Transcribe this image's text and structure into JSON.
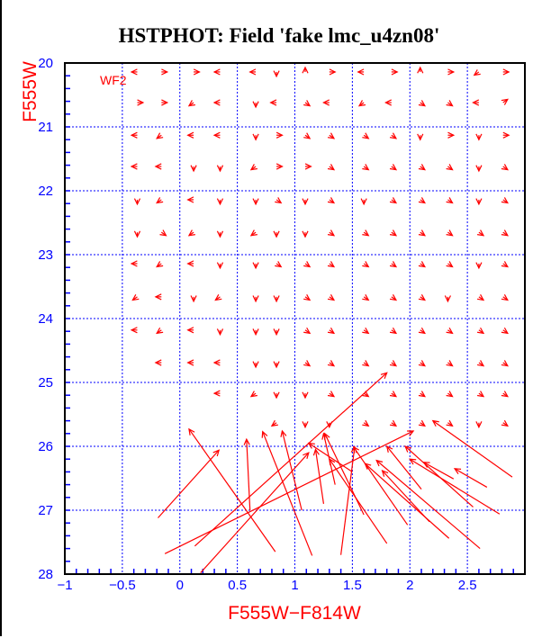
{
  "chart_data": {
    "type": "vector",
    "title": "HSTPHOT: Field 'fake lmc_u4zn08'",
    "xlabel": "F555W−F814W",
    "ylabel": "F555W",
    "panel_label": "WF2",
    "xlim": [
      -1,
      3
    ],
    "ylim": [
      28,
      20
    ],
    "y_inverted": true,
    "grid": true,
    "xticks": [
      -1,
      -0.5,
      0,
      0.5,
      1,
      1.5,
      2,
      2.5
    ],
    "xtick_labels": [
      "−1",
      "−0.5",
      "0",
      "0.5",
      "1",
      "1.5",
      "2",
      "2.5"
    ],
    "yticks": [
      20,
      21,
      22,
      23,
      24,
      25,
      26,
      27,
      28
    ],
    "ytick_labels": [
      "20",
      "21",
      "22",
      "23",
      "24",
      "25",
      "26",
      "27",
      "28"
    ],
    "colors": {
      "vectors": "#ff0000",
      "grid": "#0000ff",
      "ticks": "#0000ff",
      "axis_label": "#ff0000",
      "title": "#000000"
    },
    "small_vector_rows": [
      {
        "y": 20.14,
        "x": [
          -0.37,
          -0.16,
          0.12,
          0.35,
          0.66,
          0.84,
          1.09,
          1.3,
          1.6,
          1.84,
          2.09,
          2.33,
          2.6,
          2.81
        ],
        "dx": [
          -0.05,
          0.05,
          0.05,
          -0.05,
          -0.05,
          0,
          0,
          0.05,
          -0.05,
          0.05,
          0,
          0.05,
          -0.04,
          0.05
        ],
        "dy": [
          0,
          0,
          0,
          0,
          0,
          0.07,
          -0.07,
          0,
          0,
          0,
          -0.07,
          0,
          0.05,
          0
        ]
      },
      {
        "y": 20.62,
        "x": [
          -0.37,
          -0.16,
          0.12,
          0.35,
          0.66,
          0.84,
          1.09,
          1.3,
          1.6,
          1.84,
          2.09,
          2.33,
          2.6,
          2.81
        ],
        "dx": [
          0.05,
          0.05,
          -0.04,
          -0.05,
          0,
          -0.05,
          0.04,
          -0.05,
          -0.04,
          -0.05,
          0.04,
          0.04,
          -0.05,
          0.04
        ],
        "dy": [
          0,
          0,
          0.05,
          0,
          0.07,
          0,
          0.05,
          0,
          0.05,
          0,
          0.05,
          0.05,
          0,
          -0.05
        ]
      },
      {
        "y": 21.13,
        "x": [
          -0.37,
          -0.16,
          0.12,
          0.35,
          0.66,
          0.84,
          1.09,
          1.3,
          1.6,
          1.84,
          2.09,
          2.33,
          2.6,
          2.81
        ],
        "dx": [
          -0.05,
          -0.04,
          -0.05,
          -0.05,
          0,
          0.05,
          0.04,
          0.04,
          0.04,
          0.04,
          0,
          0.05,
          0,
          0.05
        ],
        "dy": [
          0,
          0.05,
          0,
          0,
          0.07,
          0,
          0.05,
          0.05,
          0.05,
          0.05,
          0.07,
          0,
          0.07,
          0
        ]
      },
      {
        "y": 21.62,
        "x": [
          -0.37,
          -0.16,
          0.12,
          0.35,
          0.66,
          0.84,
          1.09,
          1.3,
          1.6,
          1.84,
          2.09,
          2.33,
          2.6,
          2.81
        ],
        "dx": [
          -0.05,
          -0.05,
          0,
          0,
          -0.04,
          0.05,
          0.05,
          0.04,
          0.04,
          0.04,
          0.04,
          0.04,
          0,
          0.04
        ],
        "dy": [
          0,
          0,
          0.07,
          0.07,
          0.05,
          0,
          0,
          0.05,
          0.05,
          0.05,
          0.05,
          0.05,
          0.07,
          0.05
        ]
      },
      {
        "y": 22.14,
        "x": [
          -0.37,
          -0.16,
          0.12,
          0.35,
          0.66,
          0.84,
          1.09,
          1.3,
          1.6,
          1.84,
          2.09,
          2.33,
          2.6,
          2.81
        ],
        "dx": [
          0,
          -0.04,
          -0.05,
          0,
          0,
          0.04,
          0,
          0.04,
          0,
          0.04,
          0.04,
          0.04,
          0,
          0.04
        ],
        "dy": [
          0.07,
          0.05,
          0,
          0.07,
          0.07,
          0.05,
          0.07,
          0.05,
          0.07,
          0.05,
          0.05,
          0.05,
          0.07,
          0.05
        ]
      },
      {
        "y": 22.65,
        "x": [
          -0.37,
          -0.16,
          0.12,
          0.35,
          0.66,
          0.84,
          1.09,
          1.3,
          1.6,
          1.84,
          2.09,
          2.33,
          2.6,
          2.81
        ],
        "dx": [
          0,
          0.04,
          -0.04,
          0,
          -0.04,
          0,
          0,
          0.04,
          0.04,
          0.04,
          0.04,
          0.04,
          0.04,
          0.04
        ],
        "dy": [
          0.07,
          0.05,
          0.05,
          0.07,
          0.05,
          0.07,
          0.07,
          0.05,
          0.05,
          0.05,
          0.05,
          0.05,
          0.05,
          0.05
        ]
      },
      {
        "y": 23.14,
        "x": [
          -0.37,
          -0.16,
          0.12,
          0.35,
          0.66,
          0.84,
          1.09,
          1.3,
          1.6,
          1.84,
          2.09,
          2.33,
          2.6,
          2.81
        ],
        "dx": [
          -0.05,
          -0.04,
          -0.05,
          0,
          0,
          0.04,
          0.04,
          0.04,
          0.04,
          0.04,
          0.04,
          0.04,
          0,
          0.04
        ],
        "dy": [
          0,
          0.05,
          0,
          0.07,
          0.07,
          0.05,
          0.05,
          0.05,
          0.05,
          0.05,
          0.05,
          0.05,
          0.07,
          0.05
        ]
      },
      {
        "y": 23.66,
        "x": [
          -0.37,
          -0.16,
          0.12,
          0.35,
          0.66,
          0.84,
          1.09,
          1.3,
          1.6,
          1.84,
          2.09,
          2.33,
          2.6,
          2.81
        ],
        "dx": [
          -0.04,
          -0.05,
          0,
          -0.04,
          0,
          0,
          0.04,
          0.04,
          0.04,
          0.04,
          0.04,
          0,
          0.04,
          0.04
        ],
        "dy": [
          0.05,
          0,
          0.07,
          0.05,
          0.07,
          0.07,
          0.05,
          0.05,
          0.05,
          0.05,
          0.05,
          0.07,
          0.05,
          0.05
        ]
      },
      {
        "y": 24.18,
        "x": [
          -0.37,
          -0.16,
          0.12,
          0.35,
          0.66,
          0.84,
          1.09,
          1.3,
          1.6,
          1.84,
          2.09,
          2.33,
          2.6,
          2.81
        ],
        "dx": [
          -0.05,
          -0.04,
          -0.05,
          0,
          0,
          0,
          0.04,
          0.04,
          0.04,
          0.04,
          0.04,
          0.04,
          0.04,
          0.04
        ],
        "dy": [
          0,
          0.05,
          0,
          0.07,
          0.07,
          0.07,
          0.05,
          0.05,
          0.05,
          0.05,
          0.05,
          0.05,
          0.05,
          0.05
        ]
      },
      {
        "y": 24.69,
        "x": [
          -0.16,
          0.12,
          0.35,
          0.66,
          0.84,
          1.09,
          1.3,
          1.6,
          1.84,
          2.09,
          2.33,
          2.6,
          2.81
        ],
        "dx": [
          -0.05,
          -0.05,
          -0.05,
          0,
          0,
          0.04,
          0.04,
          0.04,
          0.04,
          0.04,
          0.04,
          0.04,
          0.04
        ],
        "dy": [
          0,
          0,
          0,
          0.07,
          0.07,
          0.05,
          0.05,
          0.05,
          0.05,
          0.05,
          0.05,
          0.05,
          0.05
        ]
      },
      {
        "y": 25.17,
        "x": [
          0.35,
          0.66,
          0.84,
          1.09,
          1.3,
          1.6,
          1.84,
          2.09,
          2.33,
          2.6,
          2.81
        ],
        "dx": [
          -0.05,
          -0.04,
          0,
          0,
          0.04,
          0.04,
          0.04,
          0.04,
          0.04,
          0.04,
          0.04
        ],
        "dy": [
          0,
          0.05,
          0.07,
          0.07,
          0.05,
          0.05,
          0.05,
          0.05,
          0.05,
          0.05,
          0.05
        ]
      },
      {
        "y": 25.63,
        "x": [
          0.84,
          1.09,
          1.3,
          1.6,
          1.84,
          2.09,
          2.33,
          2.6,
          2.81
        ],
        "dx": [
          -0.04,
          0,
          0,
          0.04,
          0.04,
          0.04,
          0.04,
          0,
          0.04
        ],
        "dy": [
          0.05,
          0.07,
          0.07,
          0.05,
          0.05,
          0.05,
          0.05,
          0.07,
          0.05
        ]
      }
    ],
    "long_vectors": [
      [
        -0.19,
        27.12,
        0.34,
        26.06
      ],
      [
        0.83,
        27.65,
        0.08,
        25.73
      ],
      [
        0.61,
        27.0,
        0.58,
        25.89
      ],
      [
        1.15,
        27.71,
        0.72,
        25.77
      ],
      [
        1.06,
        27.0,
        0.89,
        25.76
      ],
      [
        -0.13,
        27.68,
        2.03,
        25.76
      ],
      [
        0.13,
        27.56,
        1.8,
        24.85
      ],
      [
        0.18,
        27.98,
        1.12,
        26.1
      ],
      [
        1.4,
        27.7,
        1.52,
        26.01
      ],
      [
        2.89,
        26.48,
        2.2,
        25.6
      ],
      [
        2.67,
        26.64,
        2.39,
        26.35
      ],
      [
        2.78,
        27.06,
        2.0,
        26.2
      ],
      [
        2.55,
        26.95,
        1.96,
        26.0
      ],
      [
        2.38,
        26.51,
        2.12,
        26.25
      ],
      [
        2.61,
        27.6,
        1.71,
        26.22
      ],
      [
        2.34,
        27.44,
        1.61,
        26.27
      ],
      [
        2.17,
        27.18,
        1.76,
        26.38
      ],
      [
        1.98,
        27.23,
        1.51,
        26.01
      ],
      [
        1.8,
        27.52,
        1.3,
        26.2
      ],
      [
        1.6,
        27.07,
        1.26,
        25.8
      ],
      [
        2.1,
        26.67,
        1.8,
        26.0
      ],
      [
        1.35,
        26.6,
        1.25,
        25.8
      ],
      [
        1.5,
        26.4,
        1.12,
        25.95
      ],
      [
        1.25,
        26.9,
        1.18,
        26.05
      ]
    ]
  }
}
